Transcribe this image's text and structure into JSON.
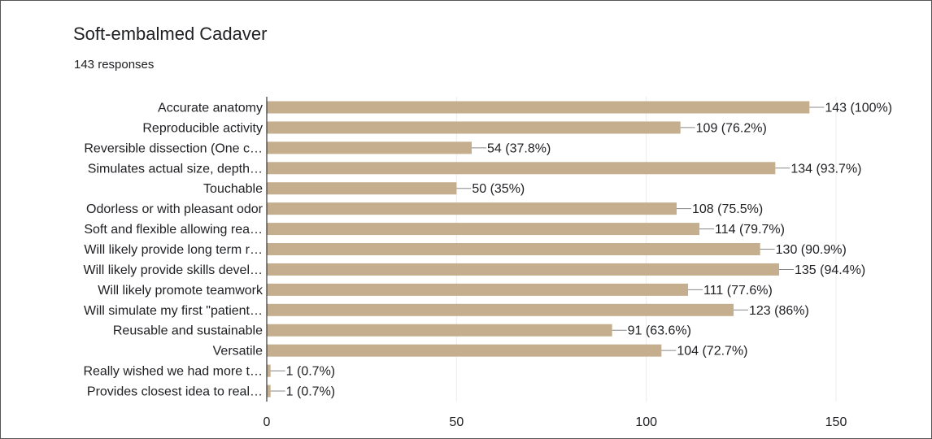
{
  "card": {
    "title": "Soft-embalmed Cadaver",
    "subtitle": "143 responses"
  },
  "colors": {
    "bar": "#c4ae8d",
    "grid": "#ececec",
    "axis": "#333333",
    "text": "#202124"
  },
  "chart_data": {
    "type": "bar",
    "orientation": "horizontal",
    "title": "Soft-embalmed Cadaver",
    "subtitle": "143 responses",
    "categories": [
      "Accurate anatomy",
      "Reproducible activity",
      "Reversible dissection (One c…",
      "Simulates actual size, depth…",
      "Touchable",
      "Odorless or with pleasant odor",
      "Soft and flexible allowing rea…",
      "Will likely provide long term r…",
      "Will likely provide skills devel…",
      "Will likely promote teamwork",
      "Will simulate my first \"patient…",
      "Reusable and sustainable",
      "Versatile",
      "Really wished we had more t…",
      "Provides closest idea to real…"
    ],
    "values": [
      143,
      109,
      54,
      134,
      50,
      108,
      114,
      130,
      135,
      111,
      123,
      91,
      104,
      1,
      1
    ],
    "value_labels": [
      "143 (100%)",
      "109 (76.2%)",
      "54 (37.8%)",
      "134 (93.7%)",
      "50 (35%)",
      "108 (75.5%)",
      "114 (79.7%)",
      "130 (90.9%)",
      "135 (94.4%)",
      "111 (77.6%)",
      "123 (86%)",
      "91 (63.6%)",
      "104 (72.7%)",
      "1 (0.7%)",
      "1 (0.7%)"
    ],
    "xlim": [
      0,
      150
    ],
    "xticks": [
      0,
      50,
      100,
      150
    ],
    "grid": true,
    "legend": "none"
  }
}
